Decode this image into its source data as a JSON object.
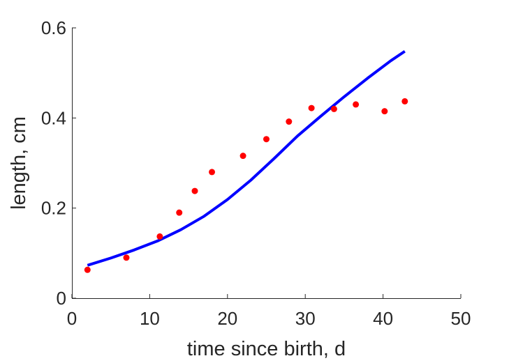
{
  "chart_data": {
    "type": "line",
    "title": "",
    "xlabel": "time since birth, d",
    "ylabel": "length, cm",
    "xlim": [
      0,
      50
    ],
    "ylim": [
      0,
      0.6
    ],
    "x_ticks": [
      0,
      10,
      20,
      30,
      40,
      50
    ],
    "x_tick_labels": [
      "0",
      "10",
      "20",
      "30",
      "40",
      "50"
    ],
    "y_ticks": [
      0,
      0.2,
      0.4,
      0.6
    ],
    "y_tick_labels": [
      "0",
      "0.2",
      "0.4",
      "0.6"
    ],
    "grid": false,
    "legend": "none",
    "series": [
      {
        "kind": "scatter",
        "color": "#ff0000",
        "x": [
          2.0,
          7.0,
          11.3,
          13.8,
          15.8,
          18.0,
          22.0,
          25.0,
          27.9,
          30.8,
          33.7,
          36.5,
          40.2,
          42.8
        ],
        "y": [
          0.063,
          0.09,
          0.137,
          0.19,
          0.238,
          0.28,
          0.316,
          0.353,
          0.392,
          0.422,
          0.42,
          0.43,
          0.415,
          0.437
        ]
      },
      {
        "kind": "line",
        "color": "#0000ff",
        "x": [
          2,
          5,
          8,
          11,
          14,
          17,
          20,
          23,
          26,
          29,
          32,
          35,
          38,
          41,
          42.8
        ],
        "y": [
          0.073,
          0.089,
          0.107,
          0.127,
          0.152,
          0.182,
          0.219,
          0.262,
          0.31,
          0.36,
          0.404,
          0.447,
          0.488,
          0.527,
          0.548
        ]
      }
    ]
  }
}
